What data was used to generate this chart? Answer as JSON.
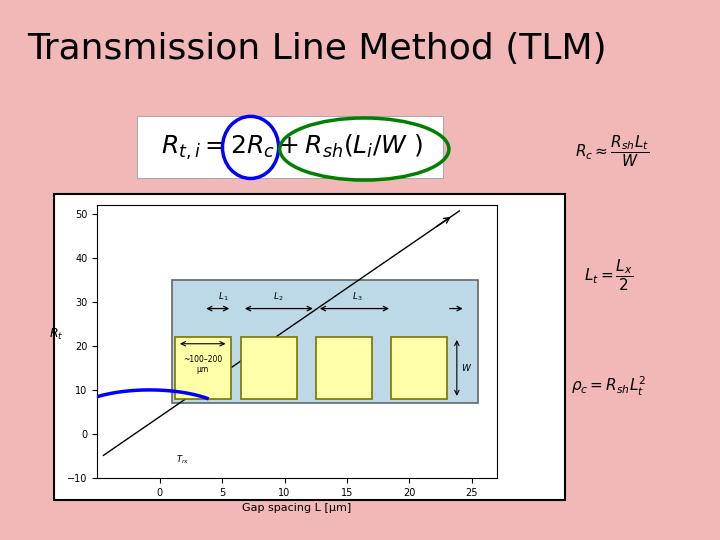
{
  "title": "Transmission Line Method (TLM)",
  "bg_color": "#F2B8B8",
  "title_fontsize": 26,
  "diagram_bg": "white",
  "inner_bg": "#BDD9E8",
  "pad_color": "#FFFFAA",
  "pad_edge": "#999900",
  "line_color": "black",
  "blue_color": "blue",
  "green_color": "green",
  "formula_text": "$R_{t,i}=2R_c+R_{sh}(L_i/W\\ )$",
  "formula_fontsize": 18,
  "plot_xlim": [
    -5,
    27
  ],
  "plot_ylim": [
    -10,
    52
  ],
  "xticks": [
    0,
    5,
    10,
    15,
    20,
    25
  ],
  "yticks": [
    -10,
    0,
    10,
    20,
    30,
    40,
    50
  ],
  "xlabel": "Gap spacing L [μm]",
  "ylabel": "R_t",
  "rc_formula": "$R_c \\approx \\dfrac{R_{sh}L_t}{W}$",
  "lt_formula": "$L_t = \\dfrac{L_x}{2}$",
  "rho_formula": "$\\rho_c = R_{sh}L_t^2$"
}
